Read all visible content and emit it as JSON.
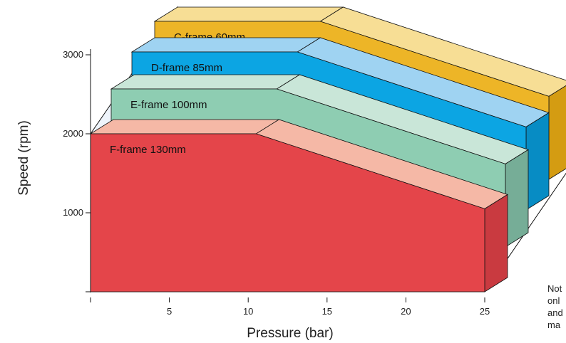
{
  "chart_data": {
    "type": "area",
    "style": "3d-stacked-depth",
    "xlabel": "Pressure (bar)",
    "ylabel": "Speed (rpm)",
    "xlim": [
      0,
      25
    ],
    "ylim": [
      0,
      3000
    ],
    "xticks": [
      5,
      10,
      15,
      20,
      25
    ],
    "yticks": [
      1000,
      2000,
      3000
    ],
    "grid": false,
    "note_lines": [
      "Not",
      "onl",
      "and",
      "ma"
    ],
    "series": [
      {
        "name": "F-frame 130mm",
        "x": [
          0,
          10.5,
          25
        ],
        "y": [
          2000,
          2000,
          1050
        ],
        "color": "#e4454a",
        "top_color": "#f5b8a6",
        "side_color": "#c93a40"
      },
      {
        "name": "E-frame 100mm",
        "x": [
          0,
          10.5,
          25
        ],
        "y": [
          2000,
          2000,
          1050
        ],
        "color": "#8ecdb2",
        "top_color": "#c9e6d8",
        "side_color": "#76ad97"
      },
      {
        "name": "D-frame 85mm",
        "x": [
          0,
          10.5,
          25
        ],
        "y": [
          2000,
          2000,
          1050
        ],
        "color": "#0ca5e3",
        "top_color": "#9fd3f2",
        "side_color": "#078cc4"
      },
      {
        "name": "C-frame 60mm",
        "x": [
          0,
          10.5,
          25
        ],
        "y": [
          2000,
          2000,
          1050
        ],
        "color": "#edb527",
        "top_color": "#f7de95",
        "side_color": "#d49c12"
      }
    ],
    "back_wall_color": "#eef4fb"
  }
}
